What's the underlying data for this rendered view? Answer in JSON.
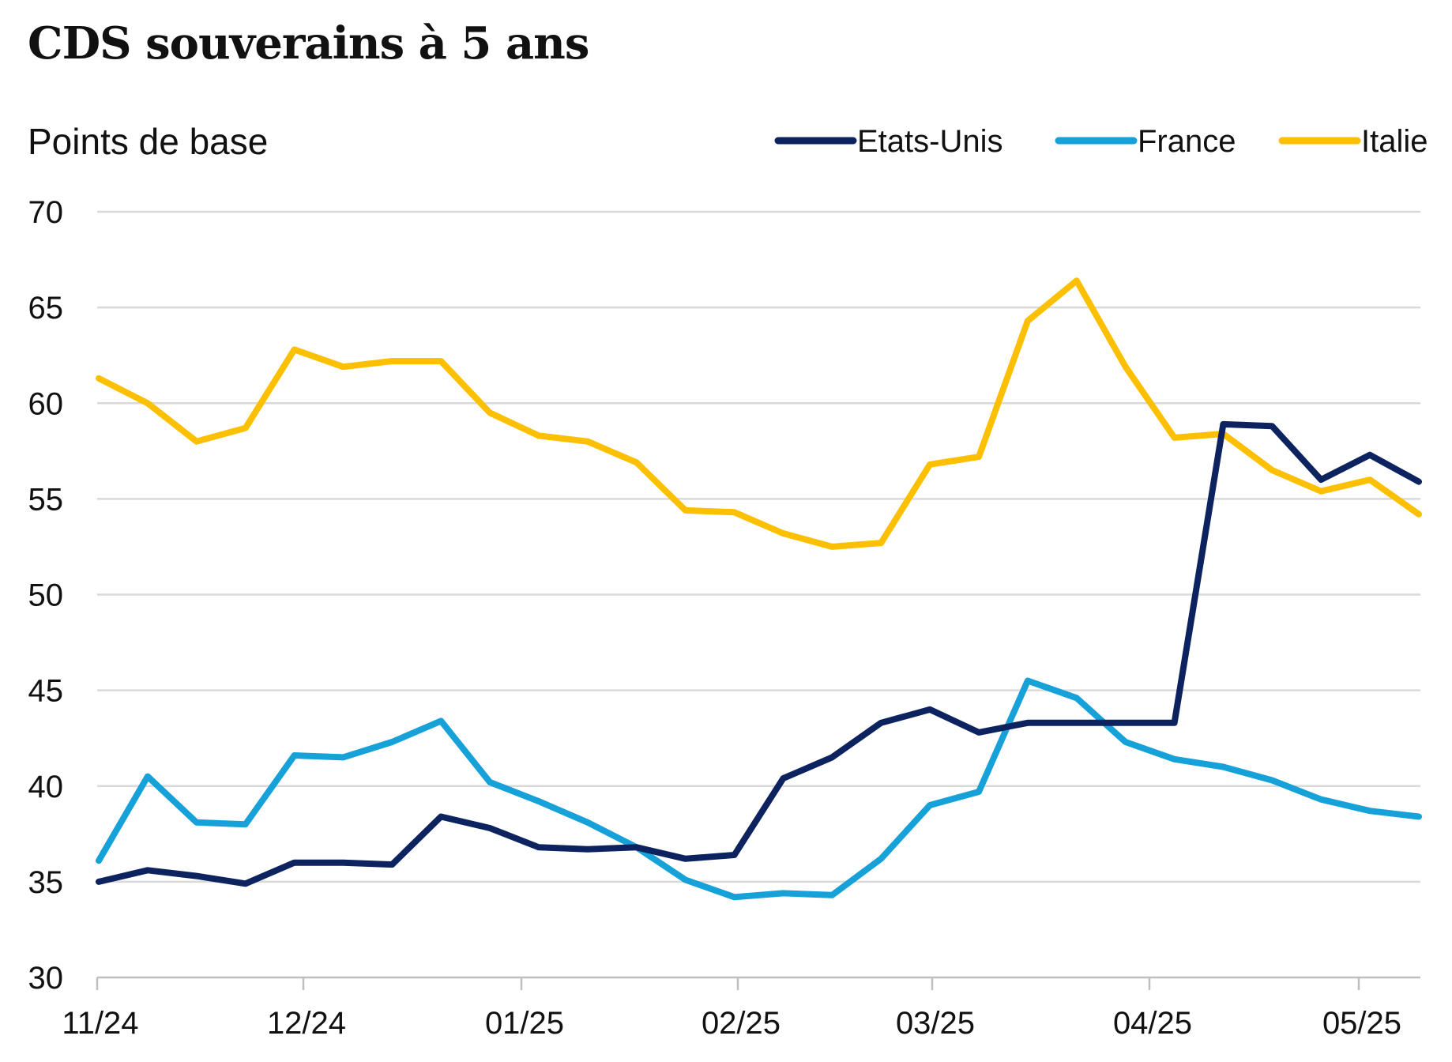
{
  "title": "CDS souverains à 5 ans",
  "chart_data": {
    "type": "line",
    "title": "CDS souverains à 5 ans",
    "ylabel": "Points de base",
    "xlabel": "",
    "ylim": [
      30,
      70
    ],
    "yticks": [
      "30",
      "35",
      "40",
      "45",
      "50",
      "55",
      "60",
      "65",
      "70"
    ],
    "xtick_labels": [
      "11/24",
      "12/24",
      "01/25",
      "02/25",
      "03/25",
      "04/25",
      "05/25"
    ],
    "grid": true,
    "legend_position": "top-right",
    "series": [
      {
        "name": "Etats-Unis",
        "color": "#0d2360",
        "values": [
          35.0,
          35.6,
          35.3,
          34.9,
          36.0,
          36.0,
          35.9,
          38.4,
          37.8,
          36.8,
          36.7,
          36.8,
          36.2,
          36.4,
          40.4,
          41.5,
          43.3,
          44.0,
          42.8,
          43.3,
          43.3,
          43.3,
          43.3,
          58.9,
          58.8,
          56.0,
          57.3,
          55.9
        ]
      },
      {
        "name": "France",
        "color": "#16a1d9",
        "values": [
          36.1,
          40.5,
          38.1,
          38.0,
          41.6,
          41.5,
          42.3,
          43.4,
          40.2,
          39.2,
          38.1,
          36.8,
          35.1,
          34.2,
          34.4,
          34.3,
          36.2,
          39.0,
          39.7,
          45.5,
          44.6,
          42.3,
          41.4,
          41.0,
          40.3,
          39.3,
          38.7,
          38.4
        ]
      },
      {
        "name": "Italie",
        "color": "#fcc000",
        "values": [
          61.3,
          60.0,
          58.0,
          58.7,
          62.8,
          61.9,
          62.2,
          62.2,
          59.5,
          58.3,
          58.0,
          56.9,
          54.4,
          54.3,
          53.2,
          52.5,
          52.7,
          56.8,
          57.2,
          64.3,
          66.4,
          61.9,
          58.2,
          58.4,
          56.5,
          55.4,
          56.0,
          54.2
        ]
      }
    ]
  }
}
